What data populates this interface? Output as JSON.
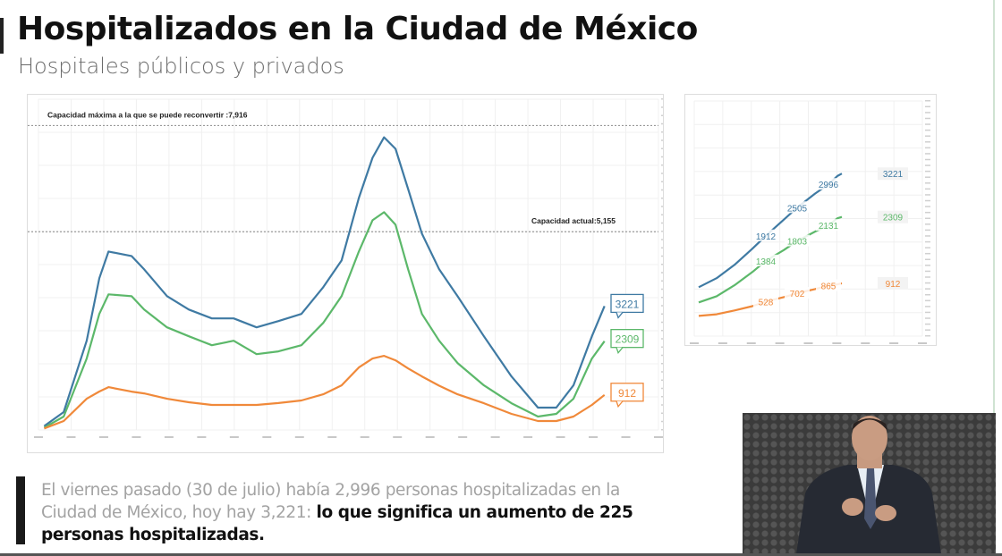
{
  "header": {
    "title": "Hospitalizados en la Ciudad de México",
    "subtitle": "Hospitales públicos y privados"
  },
  "note": {
    "gray_text": "El viernes pasado (30 de julio) había 2,996 personas hospitalizadas en la Ciudad de México, hoy hay 3,221: ",
    "bold_text": "lo que significa un aumento de 225 personas hospitalizadas."
  },
  "colors": {
    "total": "#3f7aa3",
    "general": "#5cb86a",
    "icu": "#f0893a",
    "reference": "#888888"
  },
  "video": {
    "description_icon": "sign-language-interpreter-video"
  },
  "chart_data": [
    {
      "type": "line",
      "title": "",
      "xlabel": "",
      "ylabel": "",
      "ylim": [
        0,
        8600
      ],
      "xlim": [
        "2020-03-27",
        "2021-09-18"
      ],
      "grid": true,
      "reference_lines": [
        {
          "label": "Capacidad máxima a la que se puede reconvertir :7,916",
          "value": 7916
        },
        {
          "label": "Capacidad actual:5,155",
          "value": 5155
        }
      ],
      "x": [
        "2020-04-01",
        "2020-04-18",
        "2020-05-08",
        "2020-05-19",
        "2020-05-27",
        "2020-06-16",
        "2020-06-27",
        "2020-07-17",
        "2020-08-05",
        "2020-08-25",
        "2020-09-13",
        "2020-10-03",
        "2020-10-22",
        "2020-11-11",
        "2020-11-30",
        "2020-12-16",
        "2020-12-31",
        "2021-01-12",
        "2021-01-22",
        "2021-02-01",
        "2021-02-12",
        "2021-02-24",
        "2021-03-11",
        "2021-03-27",
        "2021-04-19",
        "2021-05-13",
        "2021-06-05",
        "2021-06-21",
        "2021-07-06",
        "2021-07-22",
        "2021-08-02"
      ],
      "series": [
        {
          "key": "total",
          "values": [
            100,
            464,
            2320,
            3944,
            4640,
            4524,
            4176,
            3480,
            3132,
            2900,
            2900,
            2668,
            2830,
            3016,
            3712,
            4408,
            6032,
            7077,
            7610,
            7309,
            6265,
            5104,
            4176,
            3480,
            2436,
            1392,
            580,
            580,
            1160,
            2436,
            3221
          ],
          "end_label": "3221"
        },
        {
          "key": "general",
          "values": [
            60,
            348,
            1856,
            3016,
            3527,
            3480,
            3132,
            2668,
            2436,
            2204,
            2320,
            1972,
            2042,
            2204,
            2784,
            3480,
            4640,
            5452,
            5661,
            5336,
            4176,
            3016,
            2320,
            1740,
            1160,
            696,
            348,
            418,
            812,
            1856,
            2309
          ],
          "end_label": "2309"
        },
        {
          "key": "icu",
          "values": [
            40,
            232,
            812,
            1000,
            1114,
            998,
            950,
            812,
            720,
            650,
            650,
            650,
            700,
            766,
            928,
            1160,
            1624,
            1856,
            1926,
            1810,
            1600,
            1392,
            1150,
            928,
            696,
            418,
            232,
            232,
            348,
            650,
            912
          ],
          "end_label": "912"
        }
      ]
    },
    {
      "type": "line",
      "title": "",
      "xlabel": "",
      "ylabel": "",
      "ylim": [
        -200,
        4750
      ],
      "xlim": [
        "2021-06-30",
        "2021-08-20"
      ],
      "grid": true,
      "x": [
        "2021-07-01",
        "2021-07-05",
        "2021-07-09",
        "2021-07-13",
        "2021-07-16",
        "2021-07-20",
        "2021-07-23",
        "2021-07-27",
        "2021-07-30",
        "2021-08-01",
        "2021-08-02"
      ],
      "series": [
        {
          "key": "total",
          "values": [
            830,
            1020,
            1300,
            1640,
            1912,
            2250,
            2505,
            2800,
            2996,
            3170,
            3221
          ],
          "point_labels": {
            "4": "1912",
            "6": "2505",
            "8": "2996"
          },
          "end_label": "3221"
        },
        {
          "key": "general",
          "values": [
            510,
            640,
            870,
            1150,
            1384,
            1610,
            1803,
            2000,
            2131,
            2280,
            2309
          ],
          "point_labels": {
            "4": "1384",
            "6": "1803",
            "8": "2131"
          },
          "end_label": "2309"
        },
        {
          "key": "icu",
          "values": [
            226,
            260,
            340,
            430,
            528,
            620,
            702,
            790,
            865,
            890,
            912
          ],
          "point_labels": {
            "4": "528",
            "6": "702",
            "8": "865"
          },
          "end_label": "912"
        }
      ]
    }
  ]
}
